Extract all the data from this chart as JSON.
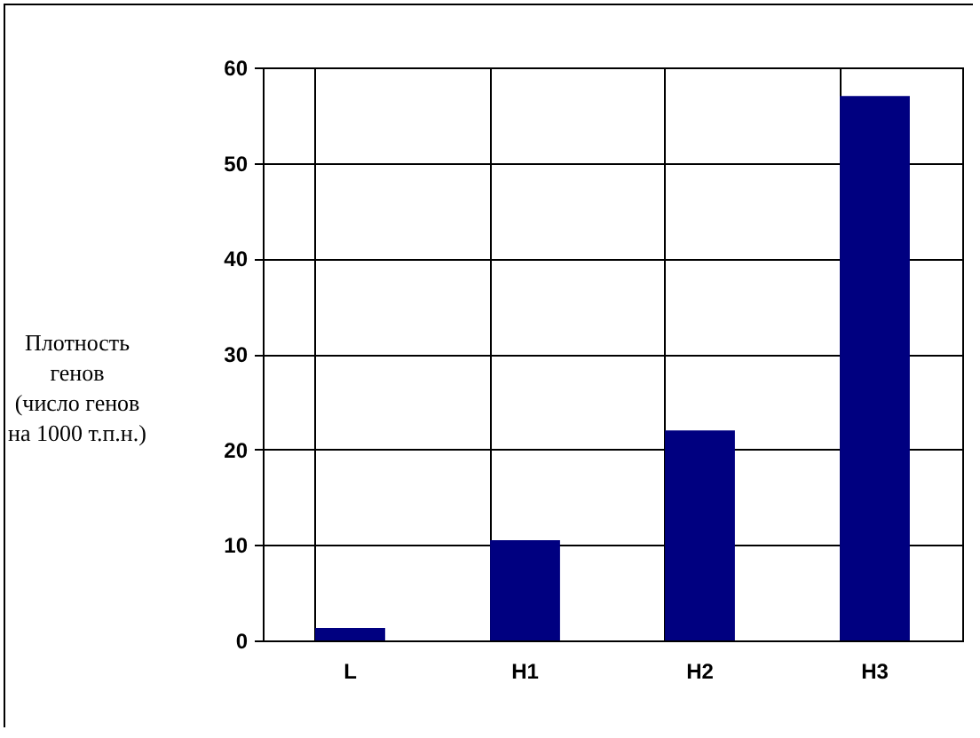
{
  "chart_data": {
    "type": "bar",
    "ylabel": "Плотность\nгенов\n(число генов\nна 1000 т.п.н.)",
    "categories": [
      "L",
      "H1",
      "H2",
      "H3"
    ],
    "values": [
      1.3,
      10.5,
      22,
      57
    ],
    "color": "#000080",
    "ylim": [
      0,
      60
    ],
    "yticks": [
      0,
      10,
      20,
      30,
      40,
      50,
      60
    ],
    "grid": true
  }
}
